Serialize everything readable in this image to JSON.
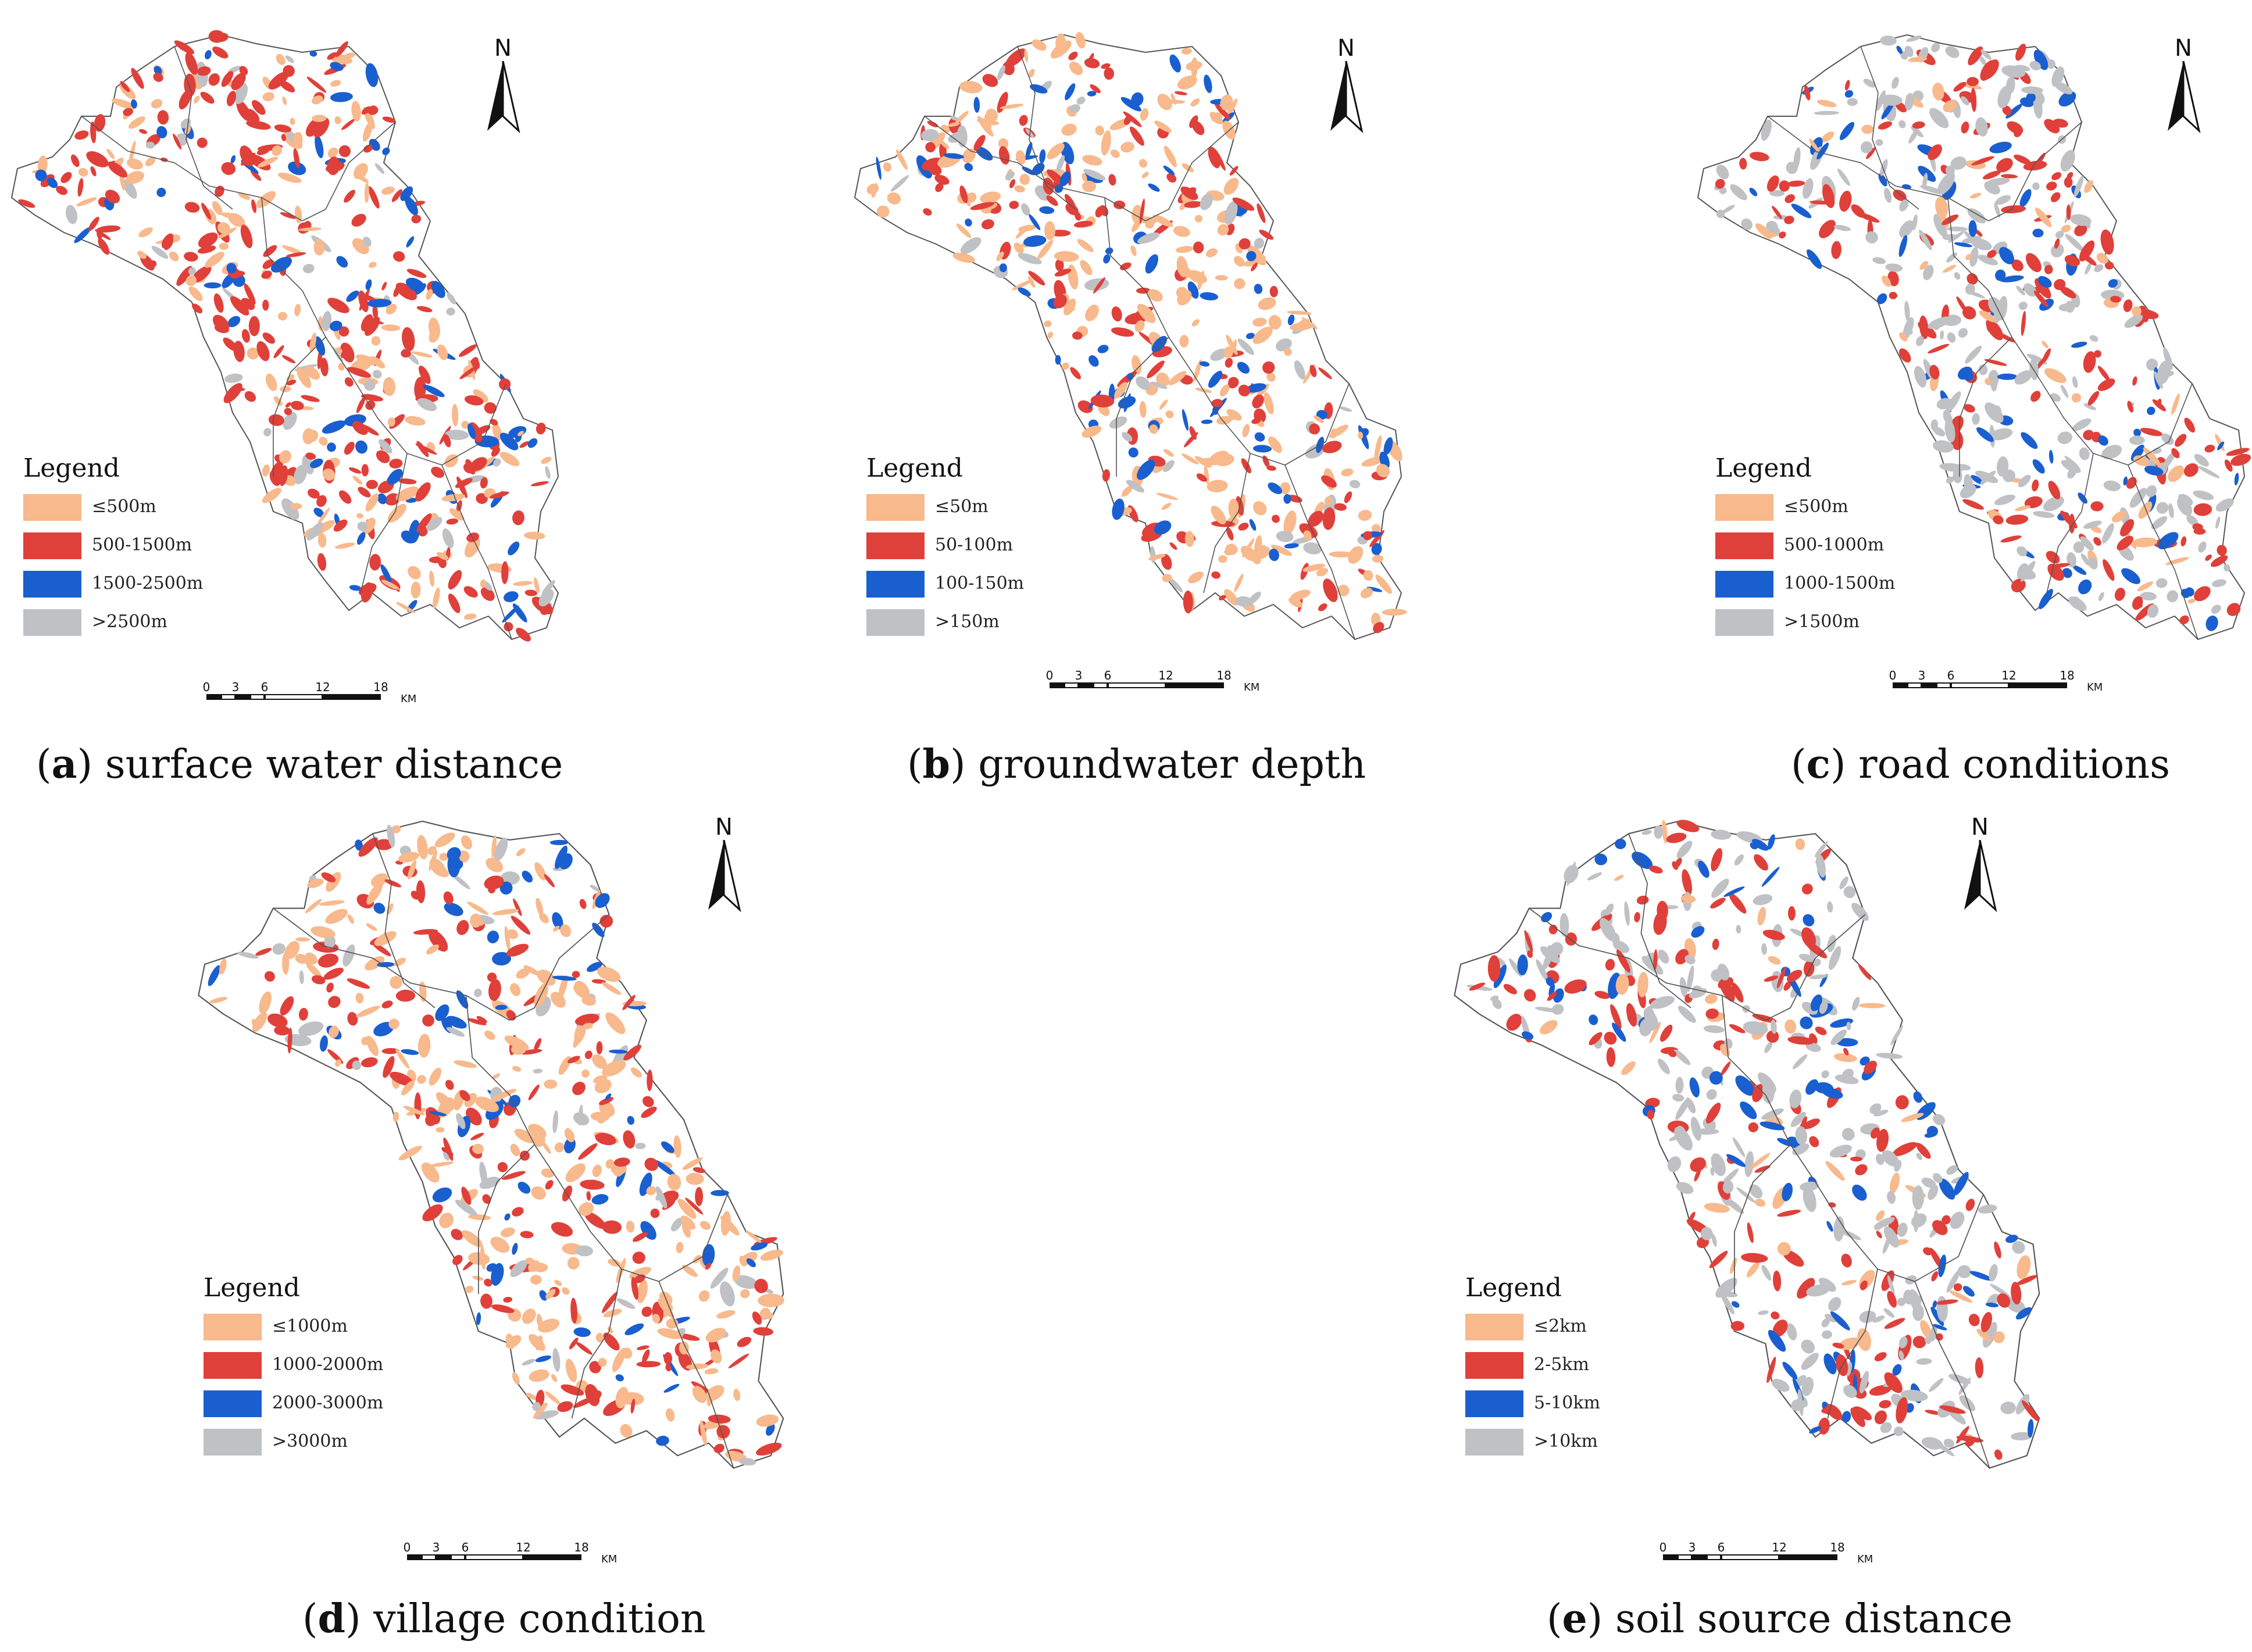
{
  "colors": {
    "class1": "#f8b98c",
    "class2": "#e0403a",
    "class3": "#1a5fd0",
    "class4": "#bfc1c4",
    "boundary": "#555555"
  },
  "north_label": "N",
  "scale": {
    "ticks": [
      "0",
      "3",
      "6",
      "12",
      "18"
    ],
    "unit": "KM"
  },
  "panels": [
    {
      "id": "a",
      "letter": "a",
      "caption": " surface water distance",
      "legend_title": "Legend",
      "legend_items": [
        "≤500m",
        "500-1500m",
        "1500-2500m",
        ">2500m"
      ],
      "dominant_classes": [
        2,
        1,
        3,
        4
      ]
    },
    {
      "id": "b",
      "letter": "b",
      "caption": " groundwater depth",
      "legend_title": "Legend",
      "legend_items": [
        "≤50m",
        "50-100m",
        "100-150m",
        ">150m"
      ],
      "dominant_classes": [
        1,
        2,
        3,
        4
      ]
    },
    {
      "id": "c",
      "letter": "c",
      "caption": " road conditions",
      "legend_title": "Legend",
      "legend_items": [
        "≤500m",
        "500-1000m",
        "1000-1500m",
        ">1500m"
      ],
      "dominant_classes": [
        4,
        2,
        3,
        1
      ]
    },
    {
      "id": "d",
      "letter": "d",
      "caption": " village condition",
      "legend_title": "Legend",
      "legend_items": [
        "≤1000m",
        "1000-2000m",
        "2000-3000m",
        ">3000m"
      ],
      "dominant_classes": [
        1,
        2,
        3,
        4
      ]
    },
    {
      "id": "e",
      "letter": "e",
      "caption": " soil source distance",
      "legend_title": "Legend",
      "legend_items": [
        "≤2km",
        "2-5km",
        "5-10km",
        ">10km"
      ],
      "dominant_classes": [
        4,
        2,
        3,
        1
      ]
    }
  ]
}
